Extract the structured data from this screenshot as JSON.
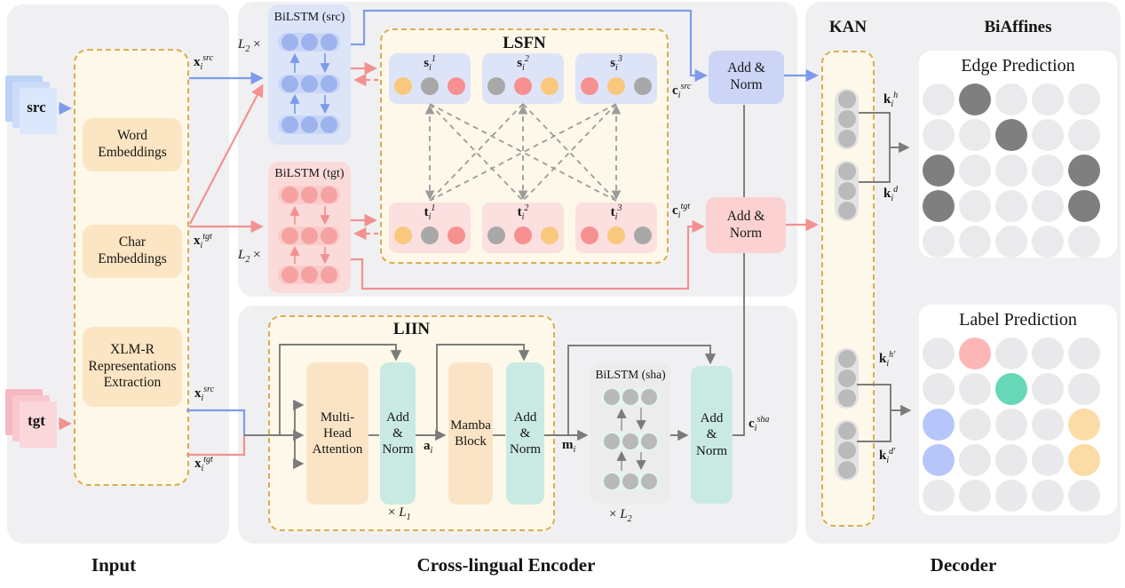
{
  "palette": {
    "yellow": "#f8c87d",
    "gray": "#a8a8a8",
    "red": "#f79090",
    "blue_node": "#9cb3ee",
    "pink_node": "#f5a2a1",
    "sha_node": "#b9b9b9",
    "kan_node": "#bababa",
    "edge_on": "#7f7f7f",
    "edge_off": "#eaeaec",
    "label_off": "#e9e9eb",
    "label_pink": "#fcb6b6",
    "label_teal": "#66d7b7",
    "label_blue": "#b7c6fa",
    "label_yellow": "#fcdca6",
    "accent_dash": "#dcab52",
    "line_blue": "#7e9bea",
    "line_pink": "#f2918f",
    "line_gray": "#7b7b7b"
  },
  "captions": {
    "input": "Input",
    "encoder": "Cross-lingual Encoder",
    "decoder": "Decoder"
  },
  "input_panel": {
    "src_label": "src",
    "tgt_label": "tgt",
    "word_emb": [
      "Word",
      "Embeddings"
    ],
    "char_emb": [
      "Char",
      "Embeddings"
    ],
    "xlmr": [
      "XLM-R",
      "Representations",
      "Extraction"
    ],
    "x_src": {
      "base": "x",
      "sub": "i",
      "sup": "src"
    },
    "x_tgt": {
      "base": "x",
      "sub": "i",
      "sup": "tgt"
    }
  },
  "encoder": {
    "bilstm_src": {
      "title": "BiLSTM (src)",
      "repeat": {
        "base": "L",
        "sub": "2",
        "mult": "×"
      },
      "row": [
        "blue_node",
        "blue_node",
        "blue_node"
      ]
    },
    "bilstm_tgt": {
      "title": "BiLSTM (tgt)",
      "repeat": {
        "base": "L",
        "sub": "2",
        "mult": "×"
      },
      "row": [
        "pink_node",
        "pink_node",
        "pink_node"
      ]
    },
    "lsfn": {
      "title": "LSFN",
      "s_units": [
        {
          "base": "s",
          "sub": "i",
          "sup": "1",
          "colors": [
            "yellow",
            "gray",
            "red"
          ]
        },
        {
          "base": "s",
          "sub": "i",
          "sup": "2",
          "colors": [
            "gray",
            "red",
            "yellow"
          ]
        },
        {
          "base": "s",
          "sub": "i",
          "sup": "3",
          "colors": [
            "red",
            "yellow",
            "gray"
          ]
        }
      ],
      "t_units": [
        {
          "base": "t",
          "sub": "i",
          "sup": "1",
          "colors": [
            "yellow",
            "gray",
            "red"
          ]
        },
        {
          "base": "t",
          "sub": "i",
          "sup": "2",
          "colors": [
            "gray",
            "red",
            "yellow"
          ]
        },
        {
          "base": "t",
          "sub": "i",
          "sup": "3",
          "colors": [
            "red",
            "yellow",
            "gray"
          ]
        }
      ]
    },
    "add_norm_src": [
      "Add &",
      "Norm"
    ],
    "add_norm_tgt": [
      "Add &",
      "Norm"
    ],
    "c_src": {
      "base": "c",
      "sub": "i",
      "sup": "src"
    },
    "c_tgt": {
      "base": "c",
      "sub": "i",
      "sup": "tgt"
    },
    "c_sha": {
      "base": "c",
      "sub": "i",
      "sup": "sha"
    },
    "liin": {
      "title": "LIIN",
      "mha": [
        "Multi-",
        "Head",
        "Attention"
      ],
      "add_norm_1": [
        "Add",
        "&",
        "Norm"
      ],
      "mamba": [
        "Mamba",
        "Block"
      ],
      "add_norm_2": [
        "Add",
        "&",
        "Norm"
      ],
      "a_i": {
        "base": "a",
        "sub": "i"
      },
      "repeat": {
        "mult": "×",
        "base": "L",
        "sub": "1"
      }
    },
    "m_i": {
      "base": "m",
      "sub": "i"
    },
    "bilstm_sha": {
      "title": "BiLSTM (sha)",
      "repeat": {
        "mult": "×",
        "base": "L",
        "sub": "2"
      },
      "row": [
        "sha_node",
        "sha_node",
        "sha_node"
      ]
    },
    "add_norm_sha": [
      "Add",
      "&",
      "Norm"
    ]
  },
  "decoder": {
    "kan": {
      "title": "KAN",
      "pill": [
        "kan_node",
        "kan_node",
        "kan_node"
      ],
      "k_h": {
        "base": "k",
        "sub": "i",
        "sup": "h"
      },
      "k_d": {
        "base": "k",
        "sub": "i",
        "sup": "d"
      },
      "k_h2": {
        "base": "k",
        "sub": "i",
        "sup": "h′"
      },
      "k_d2": {
        "base": "k",
        "sub": "i",
        "sup": "d′"
      }
    },
    "biaffines": {
      "title": "BiAffines"
    },
    "edge_grid": {
      "title": "Edge Prediction",
      "rows": 5,
      "cols": 5,
      "default": "edge_off",
      "cells": [
        [
          0,
          1,
          "edge_on"
        ],
        [
          1,
          2,
          "edge_on"
        ],
        [
          2,
          0,
          "edge_on"
        ],
        [
          2,
          4,
          "edge_on"
        ],
        [
          3,
          0,
          "edge_on"
        ],
        [
          3,
          4,
          "edge_on"
        ]
      ]
    },
    "label_grid": {
      "title": "Label Prediction",
      "rows": 5,
      "cols": 5,
      "default": "label_off",
      "cells": [
        [
          0,
          1,
          "label_pink"
        ],
        [
          1,
          2,
          "label_teal"
        ],
        [
          2,
          0,
          "label_blue"
        ],
        [
          2,
          4,
          "label_yellow"
        ],
        [
          3,
          0,
          "label_blue"
        ],
        [
          3,
          4,
          "label_yellow"
        ]
      ]
    }
  }
}
